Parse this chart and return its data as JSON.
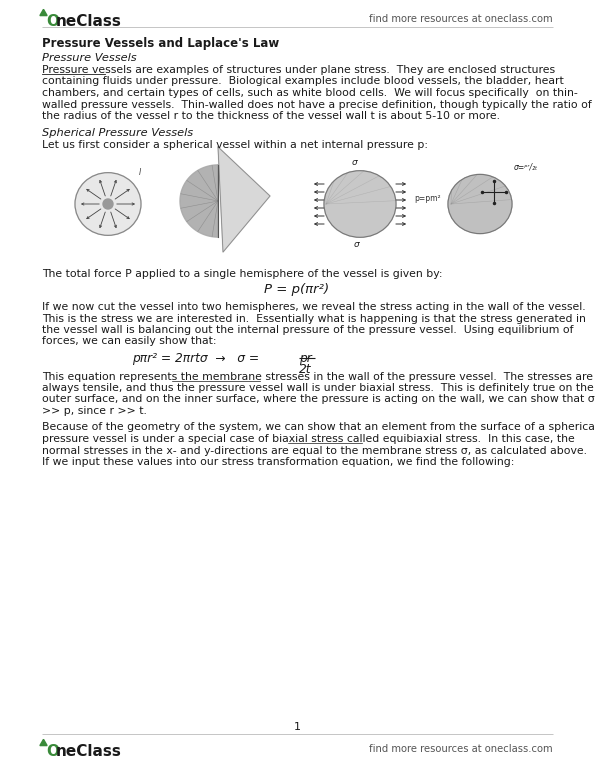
{
  "bg_color": "#ffffff",
  "logo_green": "#3a8a3a",
  "text_dark": "#1a1a1a",
  "text_gray": "#555555",
  "line_gray": "#cccccc",
  "header_logo": "OneClass",
  "header_right": "find more resources at oneclass.com",
  "title": "Pressure Vessels and Laplace's Law",
  "sec1": "Pressure Vessels",
  "para1_lines": [
    "Pressure vessels are examples of structures under plane stress.  They are enclosed structures",
    "containing fluids under pressure.  Biological examples include blood vessels, the bladder, heart",
    "chambers, and certain types of cells, such as white blood cells.  We will focus specifically  on thin-",
    "walled pressure vessels.  Thin-walled does not have a precise definition, though typically the ratio of",
    "the radius of the vessel r to the thickness of the vessel wall t is about 5-10 or more."
  ],
  "sec2": "Spherical Pressure Vessels",
  "para2": "Let us first consider a spherical vessel within a net internal pressure p:",
  "para3": "The total force P applied to a single hemisphere of the vessel is given by:",
  "para4_lines": [
    "If we now cut the vessel into two hemispheres, we reveal the stress acting in the wall of the vessel.",
    "This is the stress we are interested in.  Essentially what is happening is that the stress generated in",
    "the vessel wall is balancing out the internal pressure of the pressure vessel.  Using equilibrium of",
    "forces, we can easily show that:"
  ],
  "para5_lines": [
    "This equation represents the membrane stresses in the wall of the pressure vessel.  The stresses are",
    "always tensile, and thus the pressure vessel wall is under biaxial stress.  This is definitely true on the",
    "outer surface, and on the inner surface, where the pressure is acting on the wall, we can show that σ",
    ">> p, since r >> t."
  ],
  "para6_lines": [
    "Because of the geometry of the system, we can show that an element from the surface of a spherical",
    "pressure vessel is under a special case of biaxial stress called equibiaxial stress.  In this case, the",
    "normal stresses in the x- and y-directions are equal to the membrane stress σ, as calculated above.",
    "If we input these values into our stress transformation equation, we find the following:"
  ],
  "page_num": "1",
  "footer_right": "find more resources at oneclass.com",
  "lm": 42,
  "rm": 553
}
